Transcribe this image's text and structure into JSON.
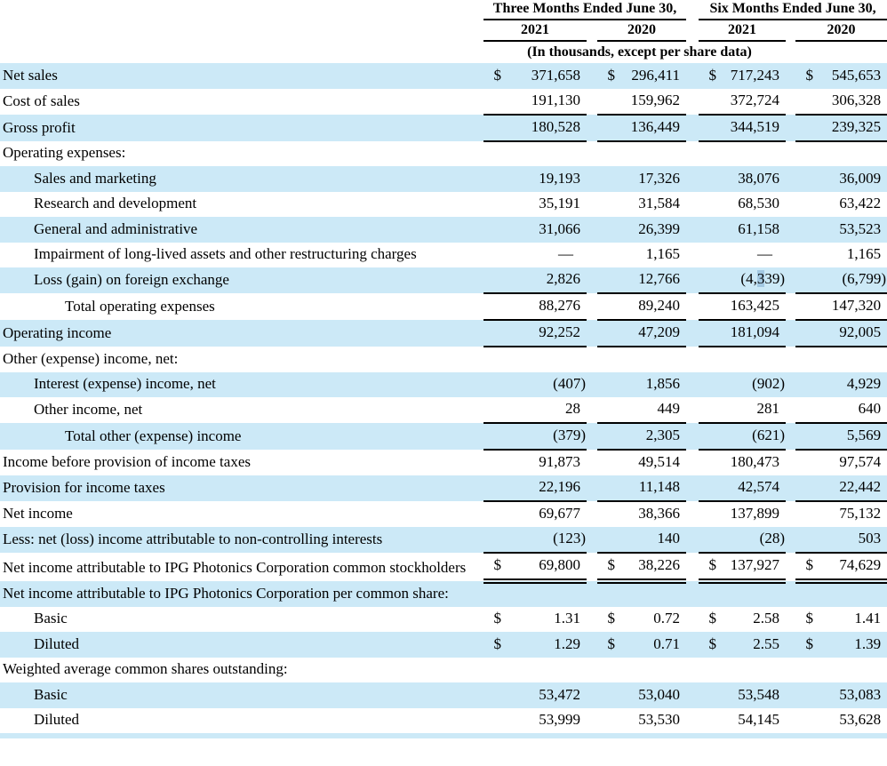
{
  "table": {
    "col_groups": [
      {
        "label": "Three Months Ended June 30,",
        "years": [
          "2021",
          "2020"
        ]
      },
      {
        "label": "Six Months Ended June 30,",
        "years": [
          "2021",
          "2020"
        ]
      }
    ],
    "units_note": "(In thousands, except per share data)",
    "rows": [
      {
        "label": "Net sales",
        "indent": 0,
        "shaded": true,
        "dollar": true,
        "rule": "none",
        "values": [
          "371,658",
          "296,411",
          "717,243",
          "545,653"
        ]
      },
      {
        "label": "Cost of sales",
        "indent": 0,
        "shaded": false,
        "dollar": false,
        "rule": "single",
        "values": [
          "191,130",
          "159,962",
          "372,724",
          "306,328"
        ]
      },
      {
        "label": "Gross profit",
        "indent": 0,
        "shaded": true,
        "dollar": false,
        "rule": "single",
        "values": [
          "180,528",
          "136,449",
          "344,519",
          "239,325"
        ]
      },
      {
        "label": "Operating expenses:",
        "indent": 0,
        "shaded": false,
        "dollar": false,
        "rule": "none",
        "values": [
          "",
          "",
          "",
          ""
        ]
      },
      {
        "label": "Sales and marketing",
        "indent": 1,
        "shaded": true,
        "dollar": false,
        "rule": "none",
        "values": [
          "19,193",
          "17,326",
          "38,076",
          "36,009"
        ]
      },
      {
        "label": "Research and development",
        "indent": 1,
        "shaded": false,
        "dollar": false,
        "rule": "none",
        "values": [
          "35,191",
          "31,584",
          "68,530",
          "63,422"
        ]
      },
      {
        "label": "General and administrative",
        "indent": 1,
        "shaded": true,
        "dollar": false,
        "rule": "none",
        "values": [
          "31,066",
          "26,399",
          "61,158",
          "53,523"
        ]
      },
      {
        "label": "Impairment of long-lived assets and other restructuring charges",
        "indent": 1,
        "shaded": false,
        "dollar": false,
        "rule": "none",
        "values": [
          "—",
          "1,165",
          "—",
          "1,165"
        ]
      },
      {
        "label": "Loss (gain) on foreign exchange",
        "indent": 1,
        "shaded": true,
        "dollar": false,
        "rule": "single",
        "values": [
          "2,826",
          "12,766",
          "(4,339)",
          "(6,799)"
        ]
      },
      {
        "label": "Total operating expenses",
        "indent": 2,
        "shaded": false,
        "dollar": false,
        "rule": "single",
        "values": [
          "88,276",
          "89,240",
          "163,425",
          "147,320"
        ]
      },
      {
        "label": "Operating income",
        "indent": 0,
        "shaded": true,
        "dollar": false,
        "rule": "single",
        "values": [
          "92,252",
          "47,209",
          "181,094",
          "92,005"
        ]
      },
      {
        "label": "Other (expense) income, net:",
        "indent": 0,
        "shaded": false,
        "dollar": false,
        "rule": "none",
        "values": [
          "",
          "",
          "",
          ""
        ]
      },
      {
        "label": "Interest (expense) income, net",
        "indent": 1,
        "shaded": true,
        "dollar": false,
        "rule": "none",
        "values": [
          "(407)",
          "1,856",
          "(902)",
          "4,929"
        ]
      },
      {
        "label": "Other income, net",
        "indent": 1,
        "shaded": false,
        "dollar": false,
        "rule": "single",
        "values": [
          "28",
          "449",
          "281",
          "640"
        ]
      },
      {
        "label": "Total other (expense) income",
        "indent": 2,
        "shaded": true,
        "dollar": false,
        "rule": "single",
        "values": [
          "(379)",
          "2,305",
          "(621)",
          "5,569"
        ]
      },
      {
        "label": "Income before provision of income taxes",
        "indent": 0,
        "shaded": false,
        "dollar": false,
        "rule": "none",
        "values": [
          "91,873",
          "49,514",
          "180,473",
          "97,574"
        ]
      },
      {
        "label": "Provision for income taxes",
        "indent": 0,
        "shaded": true,
        "dollar": false,
        "rule": "single",
        "values": [
          "22,196",
          "11,148",
          "42,574",
          "22,442"
        ]
      },
      {
        "label": "Net income",
        "indent": 0,
        "shaded": false,
        "dollar": false,
        "rule": "none",
        "values": [
          "69,677",
          "38,366",
          "137,899",
          "75,132"
        ]
      },
      {
        "label": "Less: net (loss) income attributable to non-controlling interests",
        "indent": 0,
        "shaded": true,
        "dollar": false,
        "rule": "single",
        "values": [
          "(123)",
          "140",
          "(28)",
          "503"
        ]
      },
      {
        "label": "Net income attributable to IPG Photonics Corporation common stockholders",
        "indent": 0,
        "shaded": false,
        "dollar": true,
        "rule": "double",
        "values": [
          "69,800",
          "38,226",
          "137,927",
          "74,629"
        ]
      },
      {
        "label": "Net income attributable to IPG Photonics Corporation per common share:",
        "indent": 0,
        "shaded": true,
        "dollar": false,
        "rule": "none",
        "values": [
          "",
          "",
          "",
          ""
        ]
      },
      {
        "label": "Basic",
        "indent": 1,
        "shaded": false,
        "dollar": true,
        "rule": "none",
        "values": [
          "1.31",
          "0.72",
          "2.58",
          "1.41"
        ]
      },
      {
        "label": "Diluted",
        "indent": 1,
        "shaded": true,
        "dollar": true,
        "rule": "none",
        "values": [
          "1.29",
          "0.71",
          "2.55",
          "1.39"
        ]
      },
      {
        "label": "Weighted average common shares outstanding:",
        "indent": 0,
        "shaded": false,
        "dollar": false,
        "rule": "none",
        "values": [
          "",
          "",
          "",
          ""
        ]
      },
      {
        "label": "Basic",
        "indent": 1,
        "shaded": true,
        "dollar": false,
        "rule": "none",
        "values": [
          "53,472",
          "53,040",
          "53,548",
          "53,083"
        ]
      },
      {
        "label": "Diluted",
        "indent": 1,
        "shaded": false,
        "dollar": false,
        "rule": "none",
        "values": [
          "53,999",
          "53,530",
          "54,145",
          "53,628"
        ]
      }
    ]
  },
  "selection": {
    "row_index": 8,
    "col_index": 2,
    "char_start": 3,
    "char_end": 4,
    "selected_char": "3"
  },
  "colors": {
    "row_highlight": "#cce9f7",
    "selection_highlight": "#a3c8e2",
    "rule": "#000000"
  }
}
